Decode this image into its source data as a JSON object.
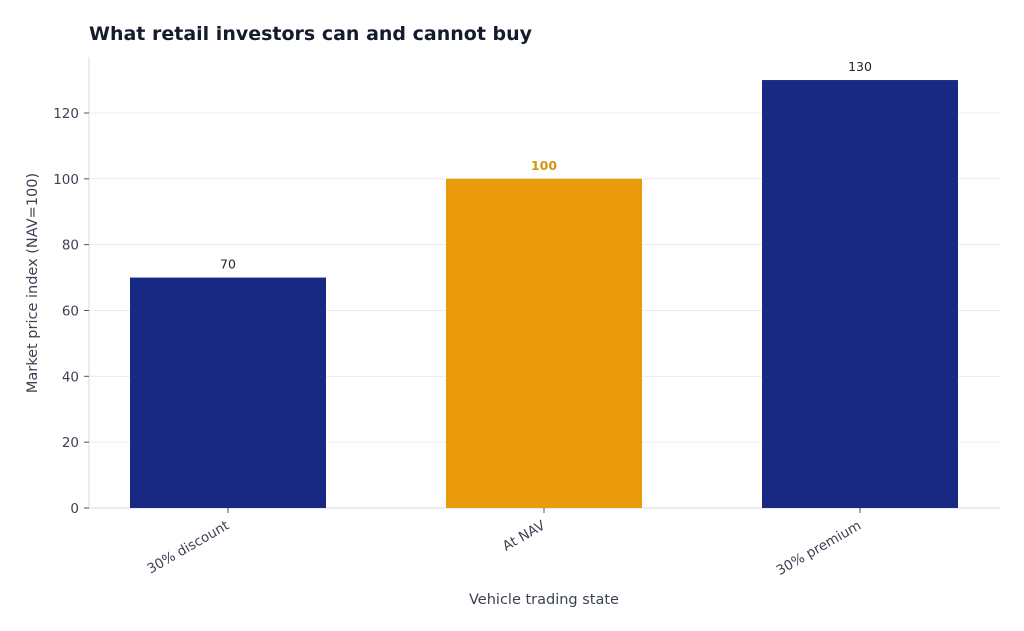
{
  "chart_data": {
    "type": "bar",
    "title": "What retail investors can and cannot buy",
    "xlabel": "Vehicle trading state",
    "ylabel": "Market price index (NAV=100)",
    "categories": [
      "30% discount",
      "At NAV",
      "30% premium"
    ],
    "values": [
      70,
      100,
      130
    ],
    "data_labels": [
      "70",
      "100",
      "130"
    ],
    "highlight_index": 1,
    "ylim": [
      0,
      137
    ],
    "yticks": [
      0,
      20,
      40,
      60,
      80,
      100,
      120
    ],
    "grid": true,
    "colors": {
      "bar": "#172983",
      "highlight": "#ea9b0b",
      "highlight_label": "#d4960f",
      "grid": "#ececec",
      "axis": "#d9d9d9"
    }
  }
}
